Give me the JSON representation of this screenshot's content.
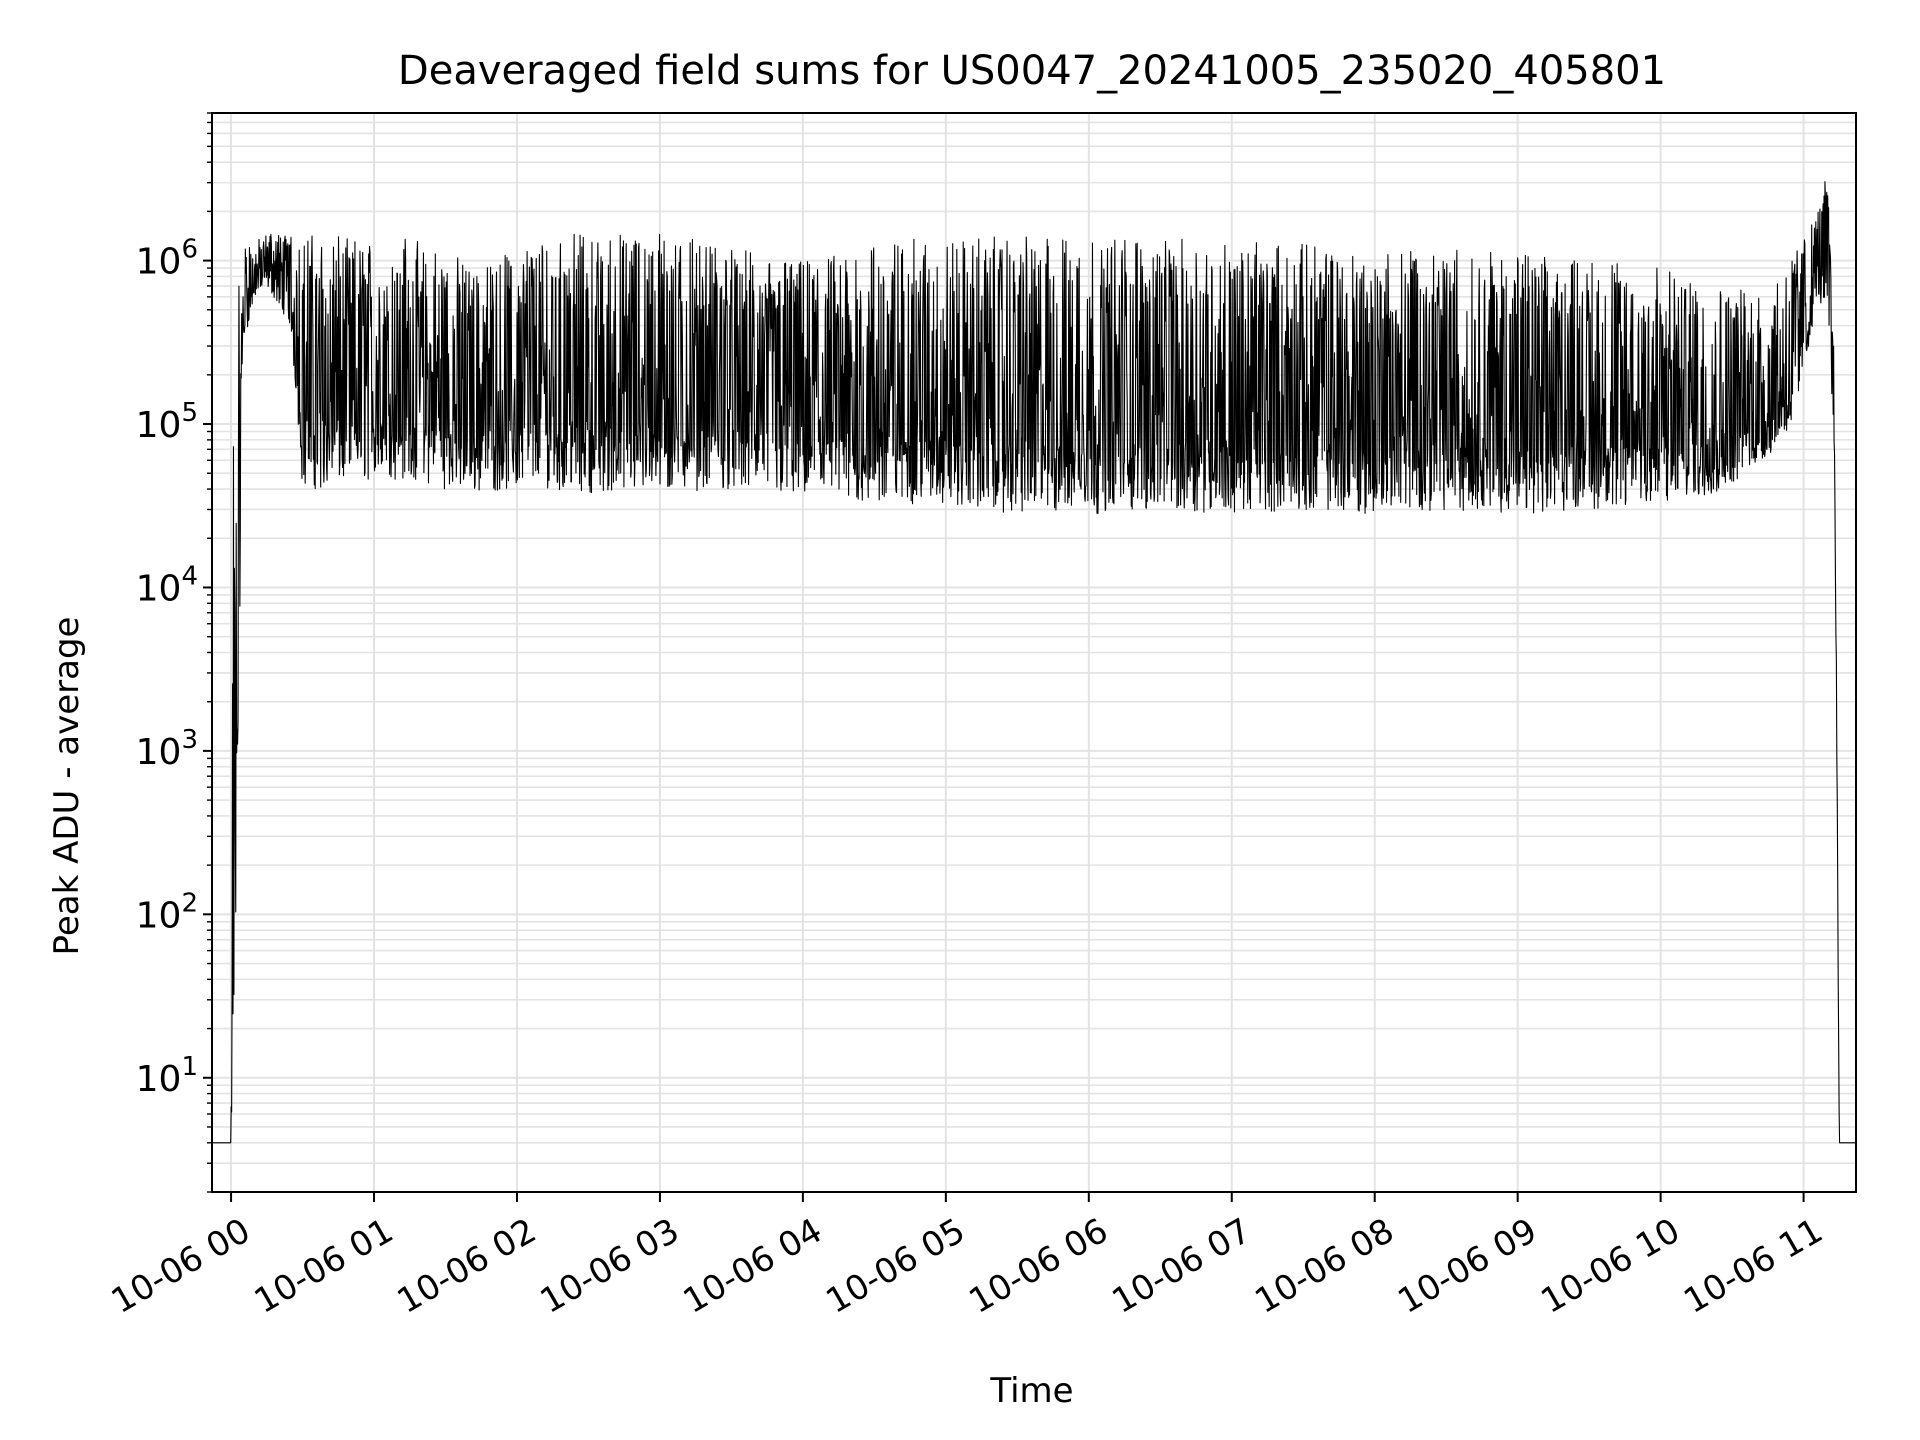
{
  "chart_data": {
    "type": "line",
    "title": "Deaveraged field sums for US0047_20241005_235020_405801",
    "xlabel": "Time",
    "ylabel": "Peak ADU - average",
    "yscale": "log",
    "xlim": [
      "10-05 23:52",
      "10-06 11:22"
    ],
    "ylim": [
      2,
      8000000
    ],
    "grid": true,
    "x_ticks": [
      "10-06 00",
      "10-06 01",
      "10-06 02",
      "10-06 03",
      "10-06 04",
      "10-06 05",
      "10-06 06",
      "10-06 07",
      "10-06 08",
      "10-06 09",
      "10-06 10",
      "10-06 11"
    ],
    "y_ticks": [
      {
        "value": 10,
        "base": "10",
        "exp": "1"
      },
      {
        "value": 100,
        "base": "10",
        "exp": "2"
      },
      {
        "value": 1000,
        "base": "10",
        "exp": "3"
      },
      {
        "value": 10000,
        "base": "10",
        "exp": "4"
      },
      {
        "value": 100000,
        "base": "10",
        "exp": "5"
      },
      {
        "value": 1000000,
        "base": "10",
        "exp": "6"
      }
    ],
    "series": [
      {
        "color": "#000000",
        "envelope": {
          "x": [
            "10-05 23:52",
            "10-06 00:00",
            "10-06 00:01",
            "10-06 00:05",
            "10-06 00:10",
            "10-06 00:15",
            "10-06 00:25",
            "10-06 00:30",
            "10-06 00:40",
            "10-06 00:50",
            "10-06 01:00",
            "10-06 01:15",
            "10-06 01:30",
            "10-06 01:45",
            "10-06 02:00",
            "10-06 02:15",
            "10-06 02:30",
            "10-06 02:45",
            "10-06 03:00",
            "10-06 03:30",
            "10-06 04:00",
            "10-06 04:30",
            "10-06 05:00",
            "10-06 05:30",
            "10-06 06:00",
            "10-06 06:30",
            "10-06 07:00",
            "10-06 07:30",
            "10-06 08:00",
            "10-06 08:30",
            "10-06 09:00",
            "10-06 09:30",
            "10-06 10:00",
            "10-06 10:15",
            "10-06 10:30",
            "10-06 10:45",
            "10-06 10:55",
            "10-06 11:00",
            "10-06 11:05",
            "10-06 11:10",
            "10-06 11:13",
            "10-06 11:15",
            "10-06 11:22"
          ],
          "low": [
            4,
            4,
            4,
            300000,
            600000,
            700000,
            400000,
            40000,
            40000,
            45000,
            45000,
            45000,
            40000,
            38000,
            40000,
            40000,
            38000,
            38000,
            38000,
            40000,
            35000,
            32000,
            32000,
            28000,
            28000,
            30000,
            28000,
            30000,
            28000,
            30000,
            28000,
            30000,
            32000,
            35000,
            40000,
            60000,
            100000,
            200000,
            500000,
            600000,
            60000,
            4,
            4
          ],
          "high": [
            4,
            4,
            300000,
            1300000,
            1300000,
            1500000,
            1500000,
            1500000,
            1400000,
            1400000,
            1400000,
            1400000,
            1200000,
            900000,
            1200000,
            1400000,
            1500000,
            1500000,
            1500000,
            1200000,
            1000000,
            1300000,
            1400000,
            1400000,
            1400000,
            1400000,
            1300000,
            1300000,
            1200000,
            1200000,
            1100000,
            1000000,
            900000,
            800000,
            700000,
            600000,
            1000000,
            1400000,
            1800000,
            3500000,
            300000,
            4,
            4
          ]
        }
      }
    ]
  }
}
